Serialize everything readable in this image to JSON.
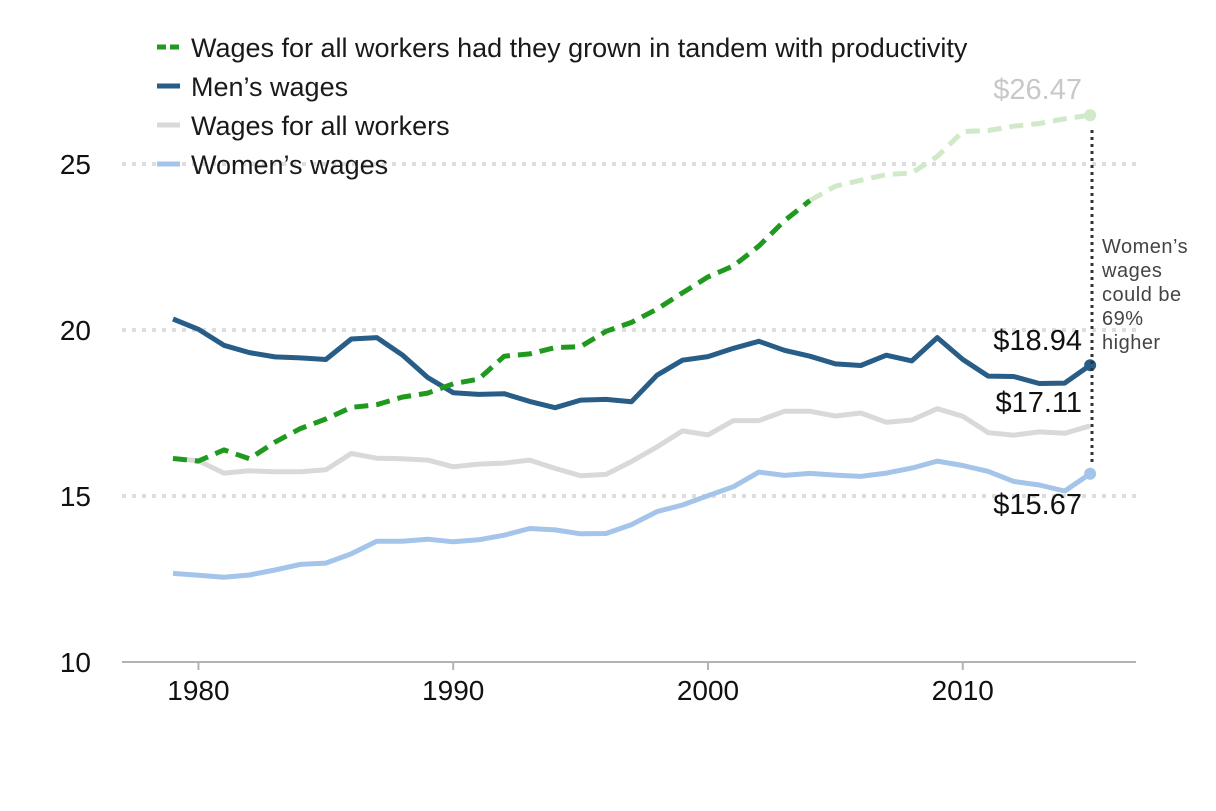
{
  "chart_data": {
    "type": "line",
    "x": [
      1979,
      1980,
      1981,
      1982,
      1983,
      1984,
      1985,
      1986,
      1987,
      1988,
      1989,
      1990,
      1991,
      1992,
      1993,
      1994,
      1995,
      1996,
      1997,
      1998,
      1999,
      2000,
      2001,
      2002,
      2003,
      2004,
      2005,
      2006,
      2007,
      2008,
      2009,
      2010,
      2011,
      2012,
      2013,
      2014,
      2015
    ],
    "xlim": [
      1977,
      2016.8
    ],
    "ylim": [
      10,
      27.5
    ],
    "xticks": [
      1980,
      1990,
      2000,
      2010
    ],
    "xtick_labels": [
      "1980",
      "1990",
      "2000",
      "2010"
    ],
    "yticks": [
      10,
      15,
      20,
      25
    ],
    "ytick_labels": [
      "10",
      "15",
      "20",
      "25"
    ],
    "grid": "horizontal dotted",
    "legend_position": "top-left",
    "series": [
      {
        "name": "Wages for all workers had they grown in tandem with productivity",
        "color": "#1f9a1f",
        "faded_color": "#cfe9c9",
        "faded_from": 2004,
        "dash": true,
        "values": [
          16.13,
          16.05,
          16.39,
          16.12,
          16.62,
          17.03,
          17.32,
          17.67,
          17.75,
          17.98,
          18.1,
          18.38,
          18.52,
          19.21,
          19.28,
          19.47,
          19.5,
          19.96,
          20.23,
          20.63,
          21.12,
          21.6,
          21.93,
          22.53,
          23.29,
          23.9,
          24.33,
          24.51,
          24.68,
          24.73,
          25.23,
          25.98,
          26.01,
          26.14,
          26.22,
          26.36,
          26.47
        ]
      },
      {
        "name": "Men’s wages",
        "color": "#275d86",
        "dash": false,
        "values": [
          20.33,
          20.02,
          19.54,
          19.32,
          19.19,
          19.16,
          19.11,
          19.73,
          19.77,
          19.25,
          18.57,
          18.11,
          18.06,
          18.08,
          17.85,
          17.66,
          17.89,
          17.91,
          17.84,
          18.64,
          19.09,
          19.2,
          19.45,
          19.66,
          19.39,
          19.21,
          18.98,
          18.93,
          19.24,
          19.07,
          19.77,
          19.11,
          18.61,
          18.6,
          18.39,
          18.4,
          18.94
        ]
      },
      {
        "name": "Wages for all workers",
        "color": "#d9d9d9",
        "dash": false,
        "values": [
          16.14,
          16.06,
          15.69,
          15.76,
          15.73,
          15.73,
          15.79,
          16.28,
          16.14,
          16.12,
          16.08,
          15.88,
          15.96,
          15.99,
          16.08,
          15.83,
          15.61,
          15.65,
          16.04,
          16.48,
          16.96,
          16.84,
          17.27,
          17.27,
          17.55,
          17.55,
          17.41,
          17.5,
          17.22,
          17.29,
          17.63,
          17.4,
          16.91,
          16.83,
          16.93,
          16.89,
          17.11
        ]
      },
      {
        "name": "Women’s wages",
        "color": "#a4c4ea",
        "dash": false,
        "values": [
          12.67,
          12.61,
          12.55,
          12.62,
          12.77,
          12.94,
          12.98,
          13.26,
          13.64,
          13.64,
          13.7,
          13.62,
          13.68,
          13.82,
          14.02,
          13.98,
          13.86,
          13.87,
          14.14,
          14.53,
          14.73,
          15.01,
          15.28,
          15.72,
          15.62,
          15.68,
          15.63,
          15.59,
          15.69,
          15.84,
          16.05,
          15.92,
          15.74,
          15.44,
          15.33,
          15.15,
          15.67
        ]
      }
    ],
    "end_labels": {
      "productivity": "$26.47",
      "men": "$18.94",
      "all": "$17.11",
      "women": "$15.67"
    },
    "annotation": [
      "Women’s",
      "wages",
      "could be",
      "69%",
      "higher"
    ]
  }
}
